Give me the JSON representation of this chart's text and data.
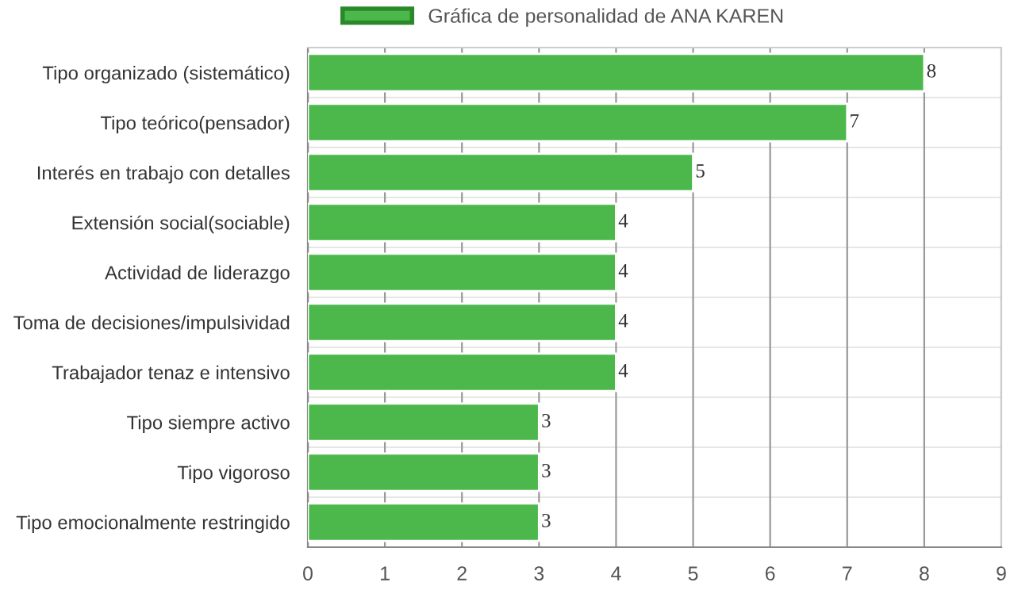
{
  "chart_data": {
    "type": "bar",
    "orientation": "horizontal",
    "categories": [
      "Tipo organizado (sistemático)",
      "Tipo teórico(pensador)",
      "Interés en trabajo con detalles",
      "Extensión social(sociable)",
      "Actividad de liderazgo",
      "Toma de decisiones/impulsividad",
      "Trabajador tenaz e intensivo",
      "Tipo siempre activo",
      "Tipo vigoroso",
      "Tipo emocionalmente restringido"
    ],
    "series": [
      {
        "name": "Gráfica de personalidad de ANA KAREN",
        "color": "#4cb84c",
        "values": [
          8,
          7,
          5,
          4,
          4,
          4,
          4,
          3,
          3,
          3
        ]
      }
    ],
    "xlim": [
      0,
      9
    ],
    "xticks": [
      0,
      1,
      2,
      3,
      4,
      5,
      6,
      7,
      8,
      9
    ],
    "grid": true,
    "legend": "top",
    "data_labels": true
  }
}
